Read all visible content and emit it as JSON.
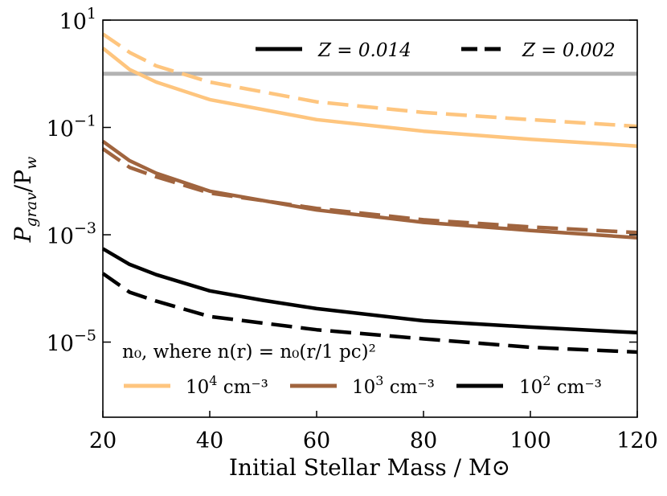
{
  "chart_data": {
    "type": "line",
    "title": "",
    "xlabel": "Initial Stellar Mass / M⊙",
    "ylabel": "P_grav / P_w",
    "ylabel_main": "P",
    "ylabel_sub1": "grav",
    "ylabel_mid": "/P",
    "ylabel_sub2": "w",
    "x_scale": "linear",
    "y_scale": "log",
    "xlim": [
      20,
      120
    ],
    "ylim_log10": [
      -6.4,
      1.0
    ],
    "xticks": [
      20,
      40,
      60,
      80,
      100,
      120
    ],
    "xtick_labels": [
      "20",
      "40",
      "60",
      "80",
      "100",
      "120"
    ],
    "yticks_log10": [
      1,
      -1,
      -3,
      -5
    ],
    "ytick_labels": [
      {
        "base": "10",
        "exp": "1"
      },
      {
        "base": "10",
        "exp": "−1"
      },
      {
        "base": "10",
        "exp": "−3"
      },
      {
        "base": "10",
        "exp": "−5"
      }
    ],
    "reference_line": {
      "y": 1.0,
      "color": "#b3b3b3"
    },
    "metallicity_legend": [
      {
        "label": "Z = 0.014",
        "style": "solid"
      },
      {
        "label": "Z = 0.002",
        "style": "dashed"
      }
    ],
    "density_legend_title": "n₀, where n(r) = n₀(r/1 pc)²",
    "density_legend": [
      {
        "base": "10",
        "exp": "4",
        "unit": " cm⁻³",
        "color": "#fec57e"
      },
      {
        "base": "10",
        "exp": "3",
        "unit": " cm⁻³",
        "color": "#a0643e"
      },
      {
        "base": "10",
        "exp": "2",
        "unit": " cm⁻³",
        "color": "#000000"
      }
    ],
    "series": [
      {
        "name": "n0=1e4, Z=0.014",
        "color": "#fec57e",
        "dash": "solid",
        "x": [
          20,
          25,
          30,
          40,
          60,
          80,
          100,
          120
        ],
        "y": [
          3.0,
          1.2,
          0.7,
          0.33,
          0.14,
          0.085,
          0.06,
          0.045
        ]
      },
      {
        "name": "n0=1e4, Z=0.002",
        "color": "#fec57e",
        "dash": "dashed",
        "x": [
          20,
          25,
          30,
          40,
          60,
          80,
          100,
          120
        ],
        "y": [
          5.5,
          2.5,
          1.4,
          0.7,
          0.3,
          0.19,
          0.14,
          0.105
        ]
      },
      {
        "name": "n0=1e3, Z=0.014",
        "color": "#a0643e",
        "dash": "solid",
        "x": [
          20,
          25,
          30,
          40,
          60,
          80,
          100,
          120
        ],
        "y": [
          0.055,
          0.024,
          0.014,
          0.0065,
          0.0029,
          0.0017,
          0.0012,
          0.00088
        ]
      },
      {
        "name": "n0=1e3, Z=0.002",
        "color": "#a0643e",
        "dash": "dashed",
        "x": [
          20,
          25,
          30,
          40,
          60,
          80,
          100,
          120
        ],
        "y": [
          0.04,
          0.018,
          0.012,
          0.006,
          0.0031,
          0.0019,
          0.0014,
          0.0011
        ]
      },
      {
        "name": "n0=1e2, Z=0.014",
        "color": "#000000",
        "dash": "solid",
        "x": [
          20,
          25,
          30,
          40,
          50,
          60,
          80,
          100,
          120
        ],
        "y": [
          0.00055,
          0.00028,
          0.00018,
          9e-05,
          6e-05,
          4.2e-05,
          2.5e-05,
          1.9e-05,
          1.5e-05
        ]
      },
      {
        "name": "n0=1e2, Z=0.002",
        "color": "#000000",
        "dash": "dashed",
        "x": [
          20,
          25,
          30,
          40,
          60,
          80,
          100,
          120
        ],
        "y": [
          0.00019,
          8.5e-05,
          5.8e-05,
          3e-05,
          1.7e-05,
          1.15e-05,
          8e-06,
          6.5e-06
        ]
      }
    ]
  }
}
